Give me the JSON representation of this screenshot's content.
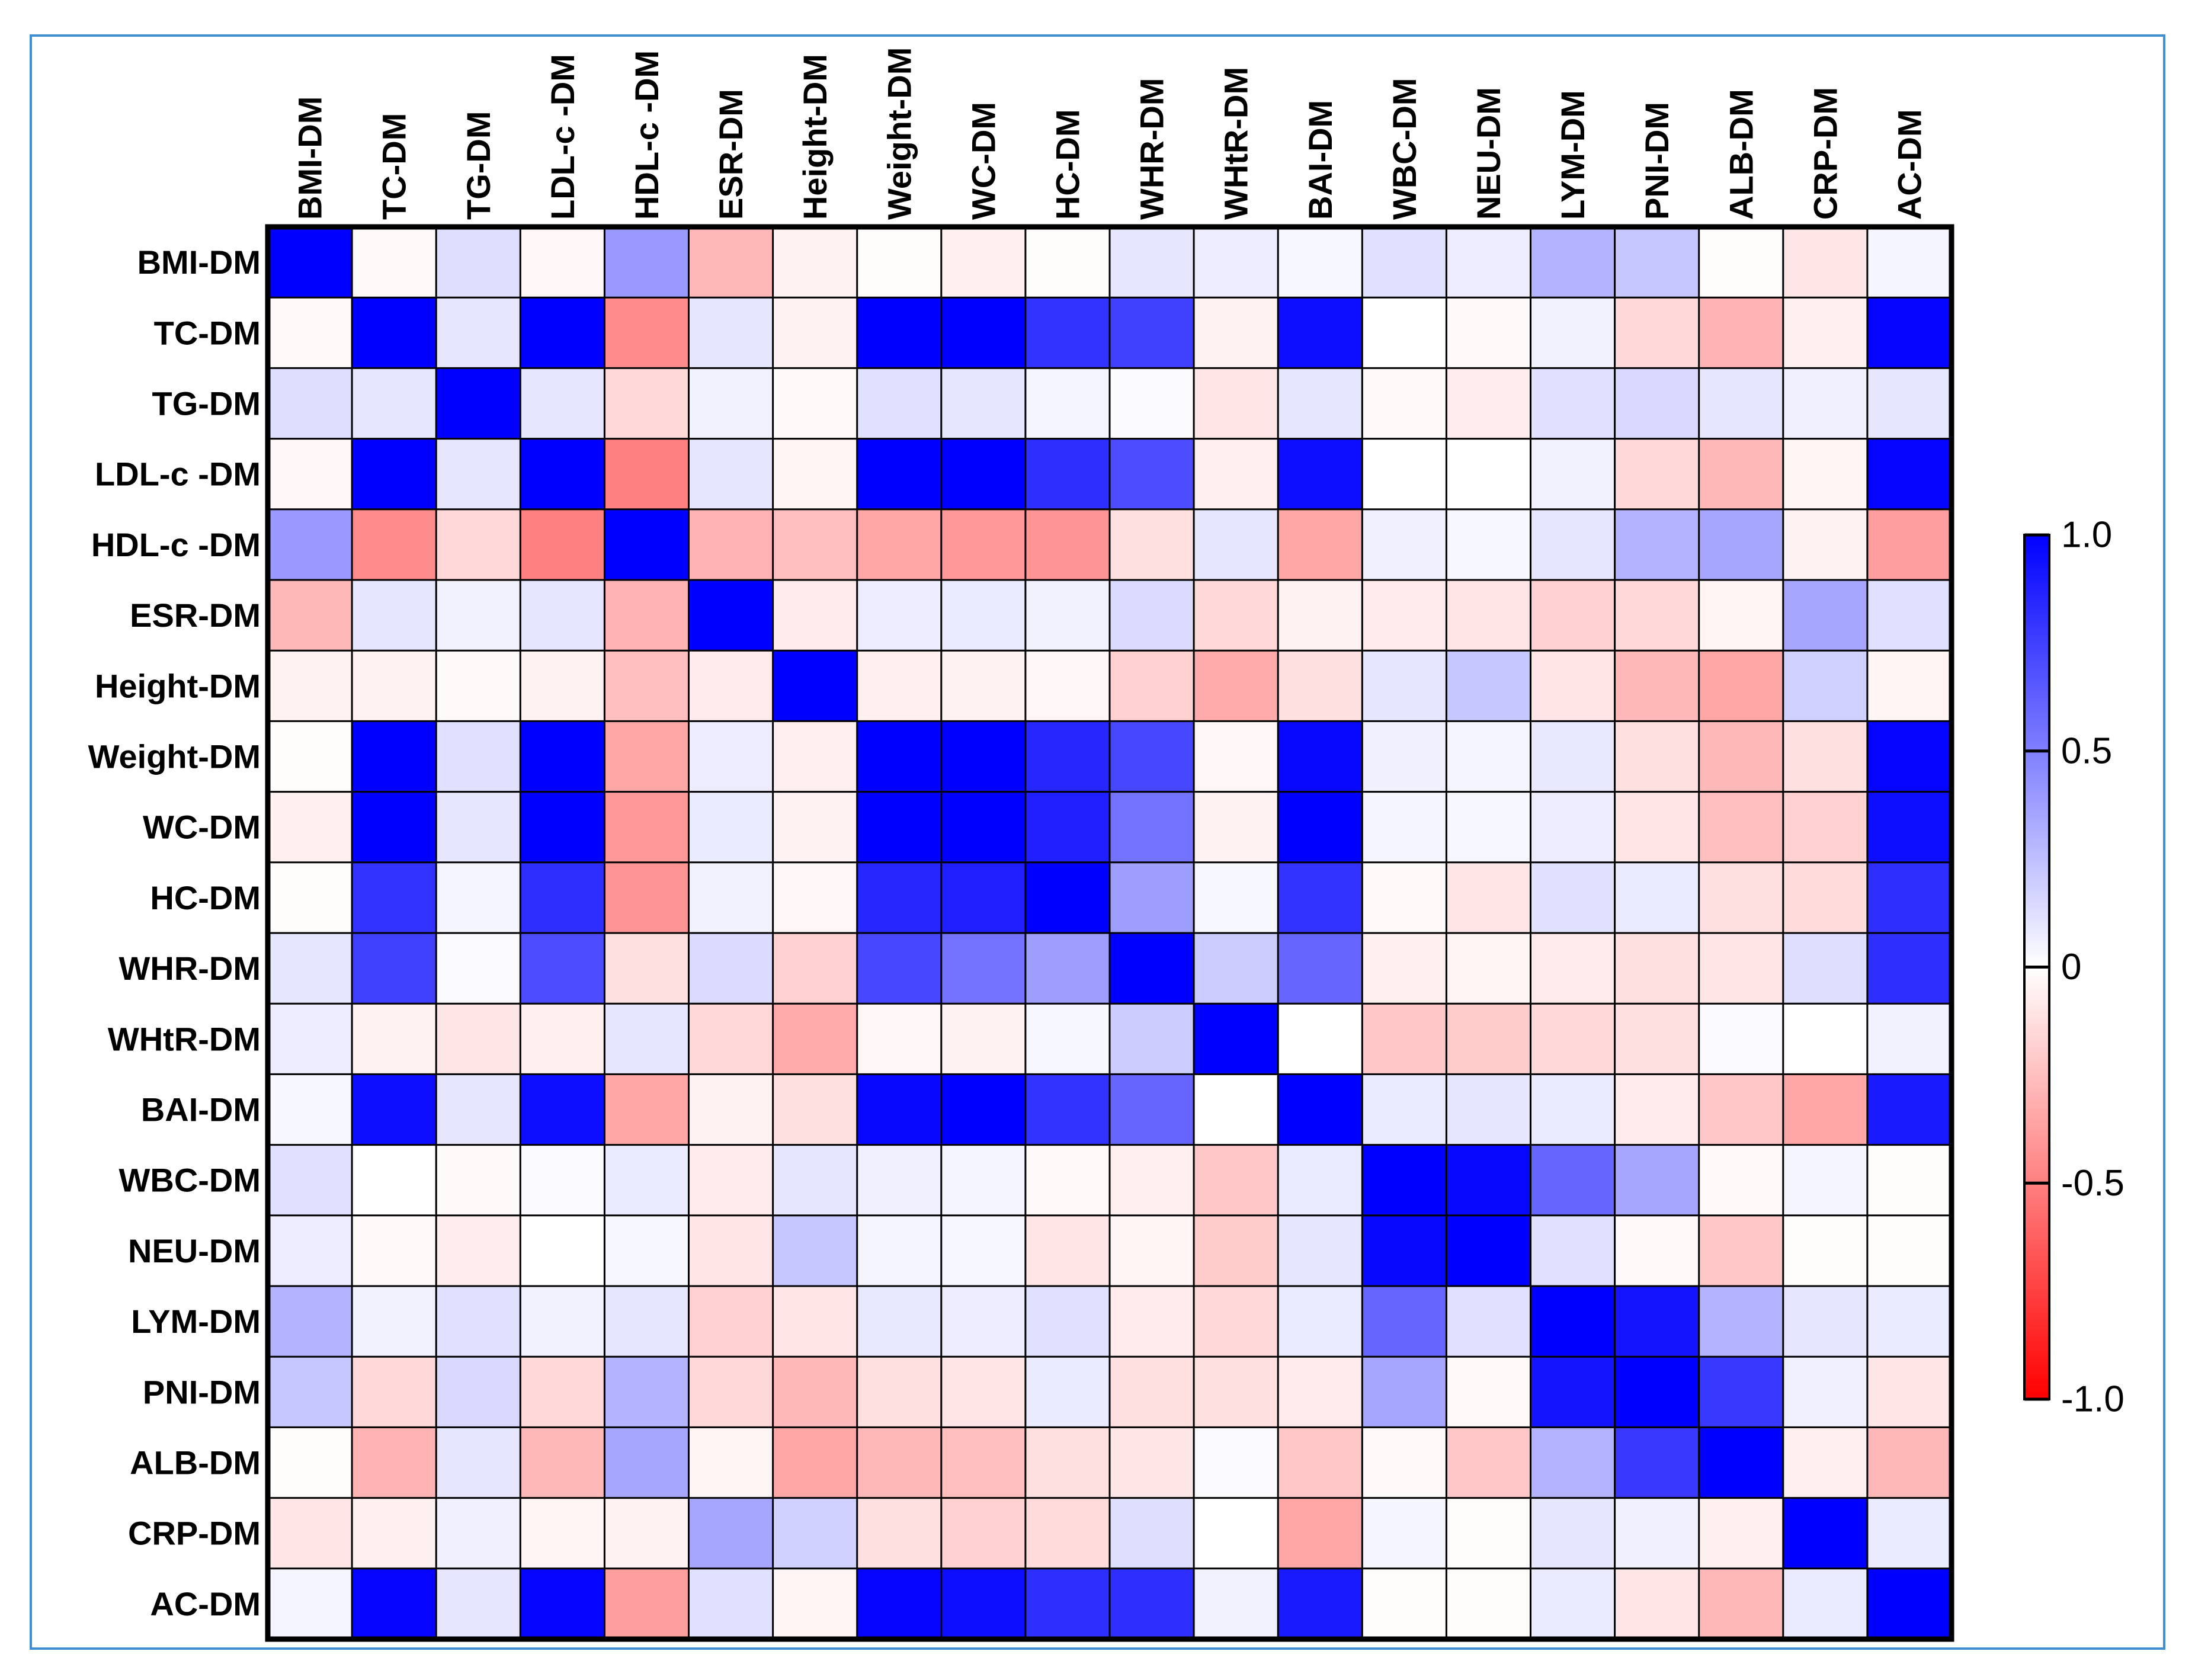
{
  "chart_data": {
    "type": "heatmap",
    "title": "",
    "variables": [
      "BMI-DM",
      "TC-DM",
      "TG-DM",
      "LDL-c -DM",
      "HDL-c -DM",
      "ESR-DM",
      "Height-DM",
      "Weight-DM",
      "WC-DM",
      "HC-DM",
      "WHR-DM",
      "WHtR-DM",
      "BAI-DM",
      "WBC-DM",
      "NEU-DM",
      "LYM-DM",
      "PNI-DM",
      "ALB-DM",
      "CRP-DM",
      "AC-DM"
    ],
    "matrix": [
      [
        1.0,
        -0.02,
        0.13,
        -0.03,
        0.4,
        -0.28,
        -0.05,
        -0.01,
        -0.06,
        -0.01,
        0.1,
        0.07,
        0.03,
        0.12,
        0.07,
        0.3,
        0.22,
        -0.01,
        -0.1,
        0.04
      ],
      [
        -0.02,
        1.0,
        0.1,
        1.0,
        -0.45,
        0.1,
        -0.05,
        1.0,
        1.0,
        0.8,
        0.75,
        -0.05,
        0.95,
        0.0,
        -0.02,
        0.05,
        -0.15,
        -0.3,
        -0.06,
        0.98
      ],
      [
        0.13,
        0.1,
        1.0,
        0.1,
        -0.15,
        0.05,
        -0.02,
        0.12,
        0.1,
        0.04,
        0.02,
        -0.1,
        0.1,
        -0.02,
        -0.07,
        0.12,
        0.15,
        0.1,
        0.06,
        0.1
      ],
      [
        -0.03,
        1.0,
        0.1,
        1.0,
        -0.5,
        0.1,
        -0.04,
        1.0,
        1.0,
        0.82,
        0.7,
        -0.06,
        0.95,
        0.0,
        0.0,
        0.05,
        -0.15,
        -0.28,
        -0.04,
        0.98
      ],
      [
        0.4,
        -0.45,
        -0.15,
        -0.5,
        1.0,
        -0.3,
        -0.25,
        -0.35,
        -0.4,
        -0.42,
        -0.12,
        0.1,
        -0.35,
        0.06,
        0.03,
        0.1,
        0.3,
        0.35,
        -0.05,
        -0.38
      ],
      [
        -0.28,
        0.1,
        0.05,
        0.1,
        -0.3,
        1.0,
        -0.08,
        0.07,
        0.08,
        0.05,
        0.14,
        -0.15,
        -0.05,
        -0.08,
        -0.1,
        -0.18,
        -0.15,
        -0.04,
        0.35,
        0.12
      ],
      [
        -0.05,
        -0.05,
        -0.02,
        -0.05,
        -0.25,
        -0.08,
        1.0,
        -0.06,
        -0.05,
        -0.03,
        -0.18,
        -0.33,
        -0.12,
        0.1,
        0.22,
        -0.1,
        -0.28,
        -0.35,
        0.18,
        -0.04
      ],
      [
        -0.01,
        1.0,
        0.12,
        1.0,
        -0.35,
        0.07,
        -0.06,
        1.0,
        1.0,
        0.85,
        0.72,
        -0.03,
        0.97,
        0.06,
        0.04,
        0.09,
        -0.12,
        -0.28,
        -0.12,
        0.98
      ],
      [
        -0.06,
        1.0,
        0.1,
        1.0,
        -0.4,
        0.08,
        -0.05,
        1.0,
        1.0,
        0.88,
        0.55,
        -0.05,
        1.0,
        0.04,
        0.03,
        0.07,
        -0.1,
        -0.25,
        -0.18,
        0.95
      ],
      [
        -0.01,
        0.8,
        0.04,
        0.82,
        -0.42,
        0.05,
        -0.03,
        0.85,
        0.88,
        1.0,
        0.38,
        0.03,
        0.8,
        -0.02,
        -0.1,
        0.12,
        0.08,
        -0.12,
        -0.14,
        0.82
      ],
      [
        0.1,
        0.75,
        0.02,
        0.7,
        -0.12,
        0.14,
        -0.18,
        0.72,
        0.55,
        0.38,
        1.0,
        0.2,
        0.6,
        -0.06,
        -0.04,
        -0.08,
        -0.12,
        -0.1,
        0.13,
        0.82
      ],
      [
        0.07,
        -0.05,
        -0.1,
        -0.06,
        0.1,
        -0.15,
        -0.33,
        -0.03,
        -0.05,
        0.03,
        0.2,
        1.0,
        0.0,
        -0.22,
        -0.2,
        -0.15,
        -0.12,
        0.02,
        0.0,
        0.05
      ],
      [
        0.03,
        0.95,
        0.1,
        0.95,
        -0.35,
        -0.05,
        -0.12,
        0.97,
        1.0,
        0.8,
        0.6,
        0.0,
        1.0,
        0.08,
        0.1,
        0.08,
        -0.08,
        -0.22,
        -0.35,
        0.9
      ],
      [
        0.12,
        0.0,
        -0.02,
        0.02,
        0.08,
        -0.08,
        0.1,
        0.06,
        0.04,
        -0.02,
        -0.06,
        -0.22,
        0.08,
        1.0,
        0.97,
        0.6,
        0.35,
        -0.02,
        0.04,
        -0.01
      ],
      [
        0.07,
        -0.02,
        -0.07,
        0.0,
        0.03,
        -0.1,
        0.22,
        0.04,
        0.03,
        -0.1,
        -0.04,
        -0.2,
        0.1,
        0.97,
        1.0,
        0.12,
        -0.02,
        -0.22,
        -0.01,
        -0.01
      ],
      [
        0.3,
        0.05,
        0.12,
        0.05,
        0.1,
        -0.18,
        -0.1,
        0.09,
        0.07,
        0.12,
        -0.08,
        -0.15,
        0.08,
        0.6,
        0.12,
        1.0,
        0.92,
        0.3,
        0.1,
        0.08
      ],
      [
        0.22,
        -0.15,
        0.15,
        -0.15,
        0.3,
        -0.15,
        -0.28,
        -0.12,
        -0.1,
        0.08,
        -0.12,
        -0.12,
        -0.08,
        0.35,
        -0.02,
        0.92,
        1.0,
        0.78,
        0.06,
        -0.1
      ],
      [
        -0.01,
        -0.3,
        0.1,
        -0.28,
        0.35,
        -0.04,
        -0.35,
        -0.28,
        -0.25,
        -0.12,
        -0.1,
        0.02,
        -0.22,
        -0.02,
        -0.22,
        0.3,
        0.78,
        1.0,
        -0.06,
        -0.28
      ],
      [
        -0.1,
        -0.06,
        0.06,
        -0.04,
        -0.05,
        0.35,
        0.18,
        -0.12,
        -0.18,
        -0.14,
        0.13,
        0.0,
        -0.35,
        0.04,
        -0.01,
        0.1,
        0.06,
        -0.06,
        1.0,
        0.08
      ],
      [
        0.04,
        0.98,
        0.1,
        0.98,
        -0.38,
        0.12,
        -0.04,
        0.98,
        0.95,
        0.82,
        0.82,
        0.05,
        0.9,
        -0.01,
        -0.01,
        0.08,
        -0.1,
        -0.28,
        0.08,
        1.0
      ]
    ],
    "colorbar": {
      "min": -1.0,
      "max": 1.0,
      "tick_labels": [
        "1.0",
        "0.5",
        "0",
        "-0.5",
        "-1.0"
      ],
      "tick_values": [
        1.0,
        0.5,
        0,
        -0.5,
        -1.0
      ],
      "colors": {
        "positive": "#0000ff",
        "zero": "#ffffff",
        "negative": "#ff0000"
      }
    }
  }
}
